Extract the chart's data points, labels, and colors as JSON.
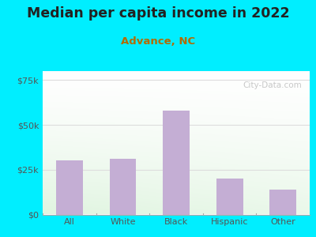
{
  "title": "Median per capita income in 2022",
  "subtitle": "Advance, NC",
  "categories": [
    "All",
    "White",
    "Black",
    "Hispanic",
    "Other"
  ],
  "values": [
    30000,
    31000,
    58000,
    20000,
    14000
  ],
  "bar_color": "#c4aed4",
  "title_fontsize": 12.5,
  "subtitle_fontsize": 9.5,
  "subtitle_color": "#b36b00",
  "title_color": "#222222",
  "background_outer": "#00eeff",
  "tick_color": "#555555",
  "axis_label_color": "#555555",
  "ylim": [
    0,
    80000
  ],
  "yticks": [
    0,
    25000,
    50000,
    75000
  ],
  "ytick_labels": [
    "$0",
    "$25k",
    "$50k",
    "$75k"
  ],
  "watermark": "City-Data.com",
  "gradient_colors": [
    "#c8eec8",
    "#f5fff5",
    "#ffffff"
  ],
  "grid_color": "#dddddd"
}
